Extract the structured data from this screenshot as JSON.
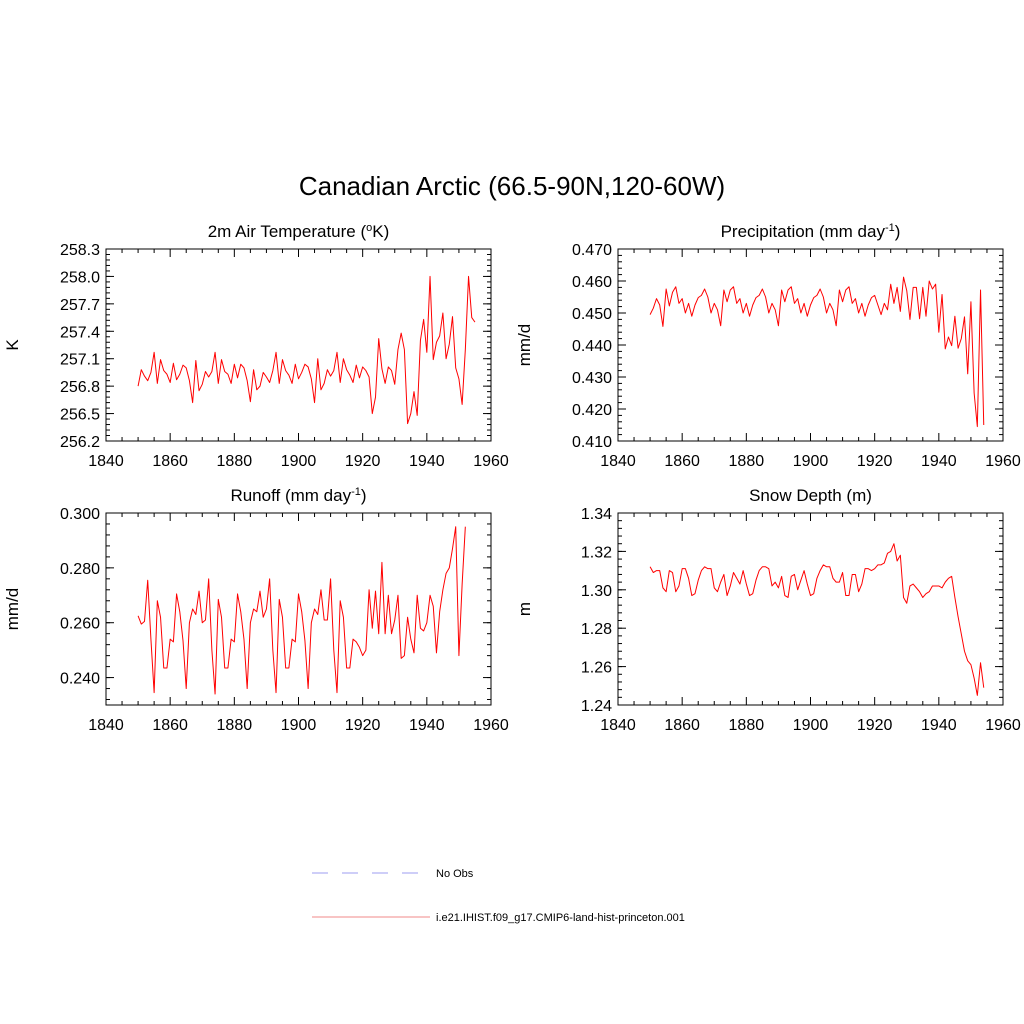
{
  "figure": {
    "title": "Canadian Arctic (66.5-90N,120-60W)"
  },
  "legend": {
    "entries": [
      {
        "label": "No Obs",
        "color": "#9c9cf0",
        "style": "dashed"
      },
      {
        "label": "i.e21.IHIST.f09_g17.CMIP6-land-hist-princeton.001",
        "color": "#f08a8a",
        "style": "solid"
      }
    ]
  },
  "chart_data": [
    {
      "type": "line",
      "title_text": "2m Air Temperature (",
      "title_sup_pre": "o",
      "title_text_mid": "K)",
      "title_sup_post": "",
      "title_text_end": "",
      "ylabel": "K",
      "xlim": [
        1840,
        1960
      ],
      "ylim": [
        256.2,
        258.3
      ],
      "xticks": [
        1840,
        1860,
        1880,
        1900,
        1920,
        1940,
        1960
      ],
      "yticks": [
        256.2,
        256.5,
        256.8,
        257.1,
        257.4,
        257.7,
        258.0,
        258.3
      ],
      "ytick_labels": [
        "256.2",
        "256.5",
        "256.8",
        "257.1",
        "257.4",
        "257.7",
        "258.0",
        "258.3"
      ],
      "series": [
        {
          "color": "#ff0000",
          "x_start": 1850,
          "values": [
            256.8,
            256.98,
            256.91,
            256.86,
            256.95,
            257.17,
            256.83,
            257.09,
            256.97,
            256.93,
            256.84,
            257.05,
            256.87,
            256.93,
            257.03,
            257.0,
            256.86,
            256.62,
            257.08,
            256.75,
            256.82,
            256.96,
            256.9,
            256.96,
            257.17,
            256.83,
            257.09,
            256.96,
            256.93,
            256.83,
            257.04,
            256.89,
            257.04,
            257.0,
            256.86,
            256.63,
            256.98,
            256.76,
            256.8,
            256.95,
            256.9,
            256.84,
            256.97,
            257.17,
            256.83,
            257.09,
            256.97,
            256.92,
            256.83,
            257.04,
            256.88,
            256.95,
            257.04,
            257.01,
            256.88,
            256.62,
            257.1,
            256.76,
            256.83,
            256.98,
            256.91,
            256.97,
            257.17,
            256.84,
            257.1,
            256.98,
            256.92,
            256.84,
            257.03,
            256.89,
            257.01,
            256.97,
            256.9,
            256.5,
            256.68,
            257.32,
            256.99,
            256.83,
            257.01,
            256.97,
            256.82,
            257.2,
            257.38,
            257.2,
            256.39,
            256.5,
            256.74,
            256.48,
            257.3,
            257.53,
            257.17,
            258.0,
            257.09,
            257.28,
            257.35,
            257.6,
            257.1,
            257.26,
            257.56,
            257.0,
            256.88,
            256.6,
            257.2,
            258.0,
            257.55,
            257.5
          ]
        }
      ]
    },
    {
      "type": "line",
      "title_text": "Precipitation (mm day",
      "title_sup_pre": "",
      "title_text_mid": "",
      "title_sup_post": "-1",
      "title_text_end": ")",
      "ylabel": "mm/d",
      "xlim": [
        1840,
        1960
      ],
      "ylim": [
        0.41,
        0.47
      ],
      "xticks": [
        1840,
        1860,
        1880,
        1900,
        1920,
        1940,
        1960
      ],
      "yticks": [
        0.41,
        0.42,
        0.43,
        0.44,
        0.45,
        0.46,
        0.47
      ],
      "ytick_labels": [
        "0.410",
        "0.420",
        "0.430",
        "0.440",
        "0.450",
        "0.460",
        "0.470"
      ],
      "series": [
        {
          "color": "#ff0000",
          "x_start": 1850,
          "values": [
            0.4495,
            0.4515,
            0.4545,
            0.4525,
            0.4458,
            0.4575,
            0.4522,
            0.4565,
            0.4582,
            0.453,
            0.4545,
            0.45,
            0.453,
            0.449,
            0.4525,
            0.4548,
            0.4555,
            0.4575,
            0.455,
            0.45,
            0.453,
            0.451,
            0.446,
            0.4572,
            0.4535,
            0.4572,
            0.4582,
            0.453,
            0.4545,
            0.45,
            0.453,
            0.449,
            0.4525,
            0.4548,
            0.4555,
            0.4575,
            0.455,
            0.45,
            0.453,
            0.451,
            0.446,
            0.4572,
            0.4535,
            0.4572,
            0.4582,
            0.453,
            0.4545,
            0.45,
            0.453,
            0.449,
            0.4525,
            0.4548,
            0.4555,
            0.4575,
            0.455,
            0.45,
            0.453,
            0.451,
            0.446,
            0.4572,
            0.4535,
            0.4572,
            0.4582,
            0.453,
            0.4545,
            0.45,
            0.453,
            0.449,
            0.4525,
            0.4548,
            0.4555,
            0.4525,
            0.4495,
            0.453,
            0.451,
            0.459,
            0.453,
            0.458,
            0.4505,
            0.4612,
            0.457,
            0.448,
            0.458,
            0.458,
            0.4482,
            0.458,
            0.449,
            0.46,
            0.4575,
            0.459,
            0.444,
            0.4558,
            0.4388,
            0.4425,
            0.4398,
            0.449,
            0.439,
            0.442,
            0.4488,
            0.431,
            0.4535,
            0.425,
            0.4145,
            0.4572,
            0.415
          ]
        }
      ]
    },
    {
      "type": "line",
      "title_text": "Runoff (mm day",
      "title_sup_pre": "",
      "title_text_mid": "",
      "title_sup_post": "-1",
      "title_text_end": ")",
      "ylabel": "mm/d",
      "xlim": [
        1840,
        1960
      ],
      "ylim": [
        0.23,
        0.3
      ],
      "xticks": [
        1840,
        1860,
        1880,
        1900,
        1920,
        1940,
        1960
      ],
      "yticks": [
        0.24,
        0.26,
        0.28,
        0.3
      ],
      "ytick_labels": [
        "0.240",
        "0.260",
        "0.280",
        "0.300"
      ],
      "series": [
        {
          "color": "#ff0000",
          "x_start": 1850,
          "values": [
            0.2625,
            0.2595,
            0.2605,
            0.2755,
            0.254,
            0.2345,
            0.268,
            0.262,
            0.2435,
            0.2435,
            0.254,
            0.253,
            0.2705,
            0.264,
            0.2535,
            0.236,
            0.26,
            0.265,
            0.263,
            0.2715,
            0.26,
            0.261,
            0.276,
            0.25,
            0.234,
            0.2685,
            0.262,
            0.2435,
            0.2435,
            0.254,
            0.253,
            0.2705,
            0.264,
            0.254,
            0.236,
            0.26,
            0.265,
            0.264,
            0.2715,
            0.262,
            0.265,
            0.276,
            0.25,
            0.2345,
            0.2685,
            0.262,
            0.2435,
            0.2435,
            0.254,
            0.253,
            0.2705,
            0.264,
            0.2535,
            0.236,
            0.26,
            0.265,
            0.263,
            0.272,
            0.261,
            0.261,
            0.276,
            0.25,
            0.2345,
            0.268,
            0.262,
            0.2435,
            0.2435,
            0.254,
            0.253,
            0.251,
            0.248,
            0.25,
            0.272,
            0.258,
            0.2715,
            0.256,
            0.282,
            0.256,
            0.27,
            0.256,
            0.261,
            0.27,
            0.247,
            0.248,
            0.262,
            0.254,
            0.249,
            0.27,
            0.258,
            0.257,
            0.26,
            0.27,
            0.266,
            0.249,
            0.264,
            0.272,
            0.278,
            0.28,
            0.287,
            0.295,
            0.248,
            0.274,
            0.295
          ]
        }
      ]
    },
    {
      "type": "line",
      "title_text": "Snow Depth (m)",
      "title_sup_pre": "",
      "title_text_mid": "",
      "title_sup_post": "",
      "title_text_end": "",
      "ylabel": "m",
      "xlim": [
        1840,
        1960
      ],
      "ylim": [
        1.24,
        1.34
      ],
      "xticks": [
        1840,
        1860,
        1880,
        1900,
        1920,
        1940,
        1960
      ],
      "yticks": [
        1.24,
        1.26,
        1.28,
        1.3,
        1.32,
        1.34
      ],
      "ytick_labels": [
        "1.24",
        "1.26",
        "1.28",
        "1.30",
        "1.32",
        "1.34"
      ],
      "series": [
        {
          "color": "#ff0000",
          "x_start": 1850,
          "values": [
            1.312,
            1.309,
            1.31,
            1.31,
            1.301,
            1.299,
            1.31,
            1.309,
            1.299,
            1.302,
            1.311,
            1.311,
            1.306,
            1.297,
            1.298,
            1.305,
            1.31,
            1.312,
            1.311,
            1.311,
            1.301,
            1.299,
            1.304,
            1.308,
            1.297,
            1.302,
            1.309,
            1.306,
            1.303,
            1.31,
            1.303,
            1.297,
            1.298,
            1.305,
            1.31,
            1.312,
            1.312,
            1.311,
            1.302,
            1.304,
            1.301,
            1.307,
            1.297,
            1.296,
            1.307,
            1.308,
            1.3,
            1.305,
            1.31,
            1.303,
            1.297,
            1.298,
            1.306,
            1.31,
            1.313,
            1.312,
            1.312,
            1.306,
            1.304,
            1.304,
            1.309,
            1.297,
            1.297,
            1.308,
            1.308,
            1.299,
            1.303,
            1.311,
            1.311,
            1.31,
            1.311,
            1.313,
            1.313,
            1.314,
            1.319,
            1.32,
            1.324,
            1.315,
            1.318,
            1.296,
            1.293,
            1.302,
            1.303,
            1.301,
            1.299,
            1.296,
            1.298,
            1.299,
            1.302,
            1.302,
            1.302,
            1.301,
            1.304,
            1.306,
            1.307,
            1.296,
            1.286,
            1.277,
            1.268,
            1.263,
            1.261,
            1.254,
            1.245,
            1.262,
            1.249
          ]
        }
      ]
    }
  ]
}
